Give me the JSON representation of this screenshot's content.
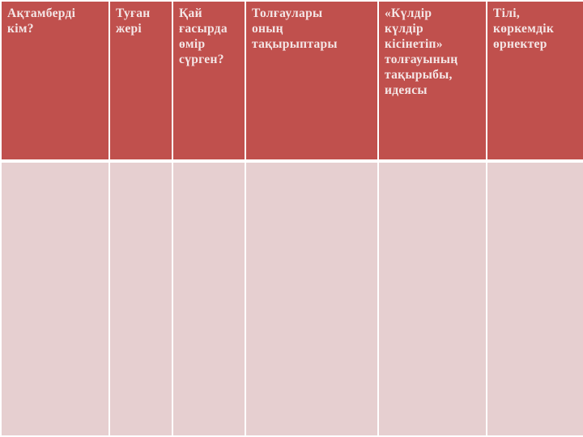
{
  "table": {
    "headers": [
      "Ақтамберді\nкім?",
      "Туған\nжері",
      "Қай\nғасырда\nөмір\nсүрген?",
      "Толғаулары\nоның\nтақырыптары",
      "«Күлдір\nкүлдір\nкісінетіп»\nтолғауының\nтақырыбы,\nидеясы",
      "Тілі,\nкөркемдік\nөрнектер"
    ],
    "rows": [
      [
        "",
        "",
        "",
        "",
        "",
        ""
      ]
    ]
  },
  "colors": {
    "header": "#C0504D",
    "body": "#E6CFD0"
  }
}
